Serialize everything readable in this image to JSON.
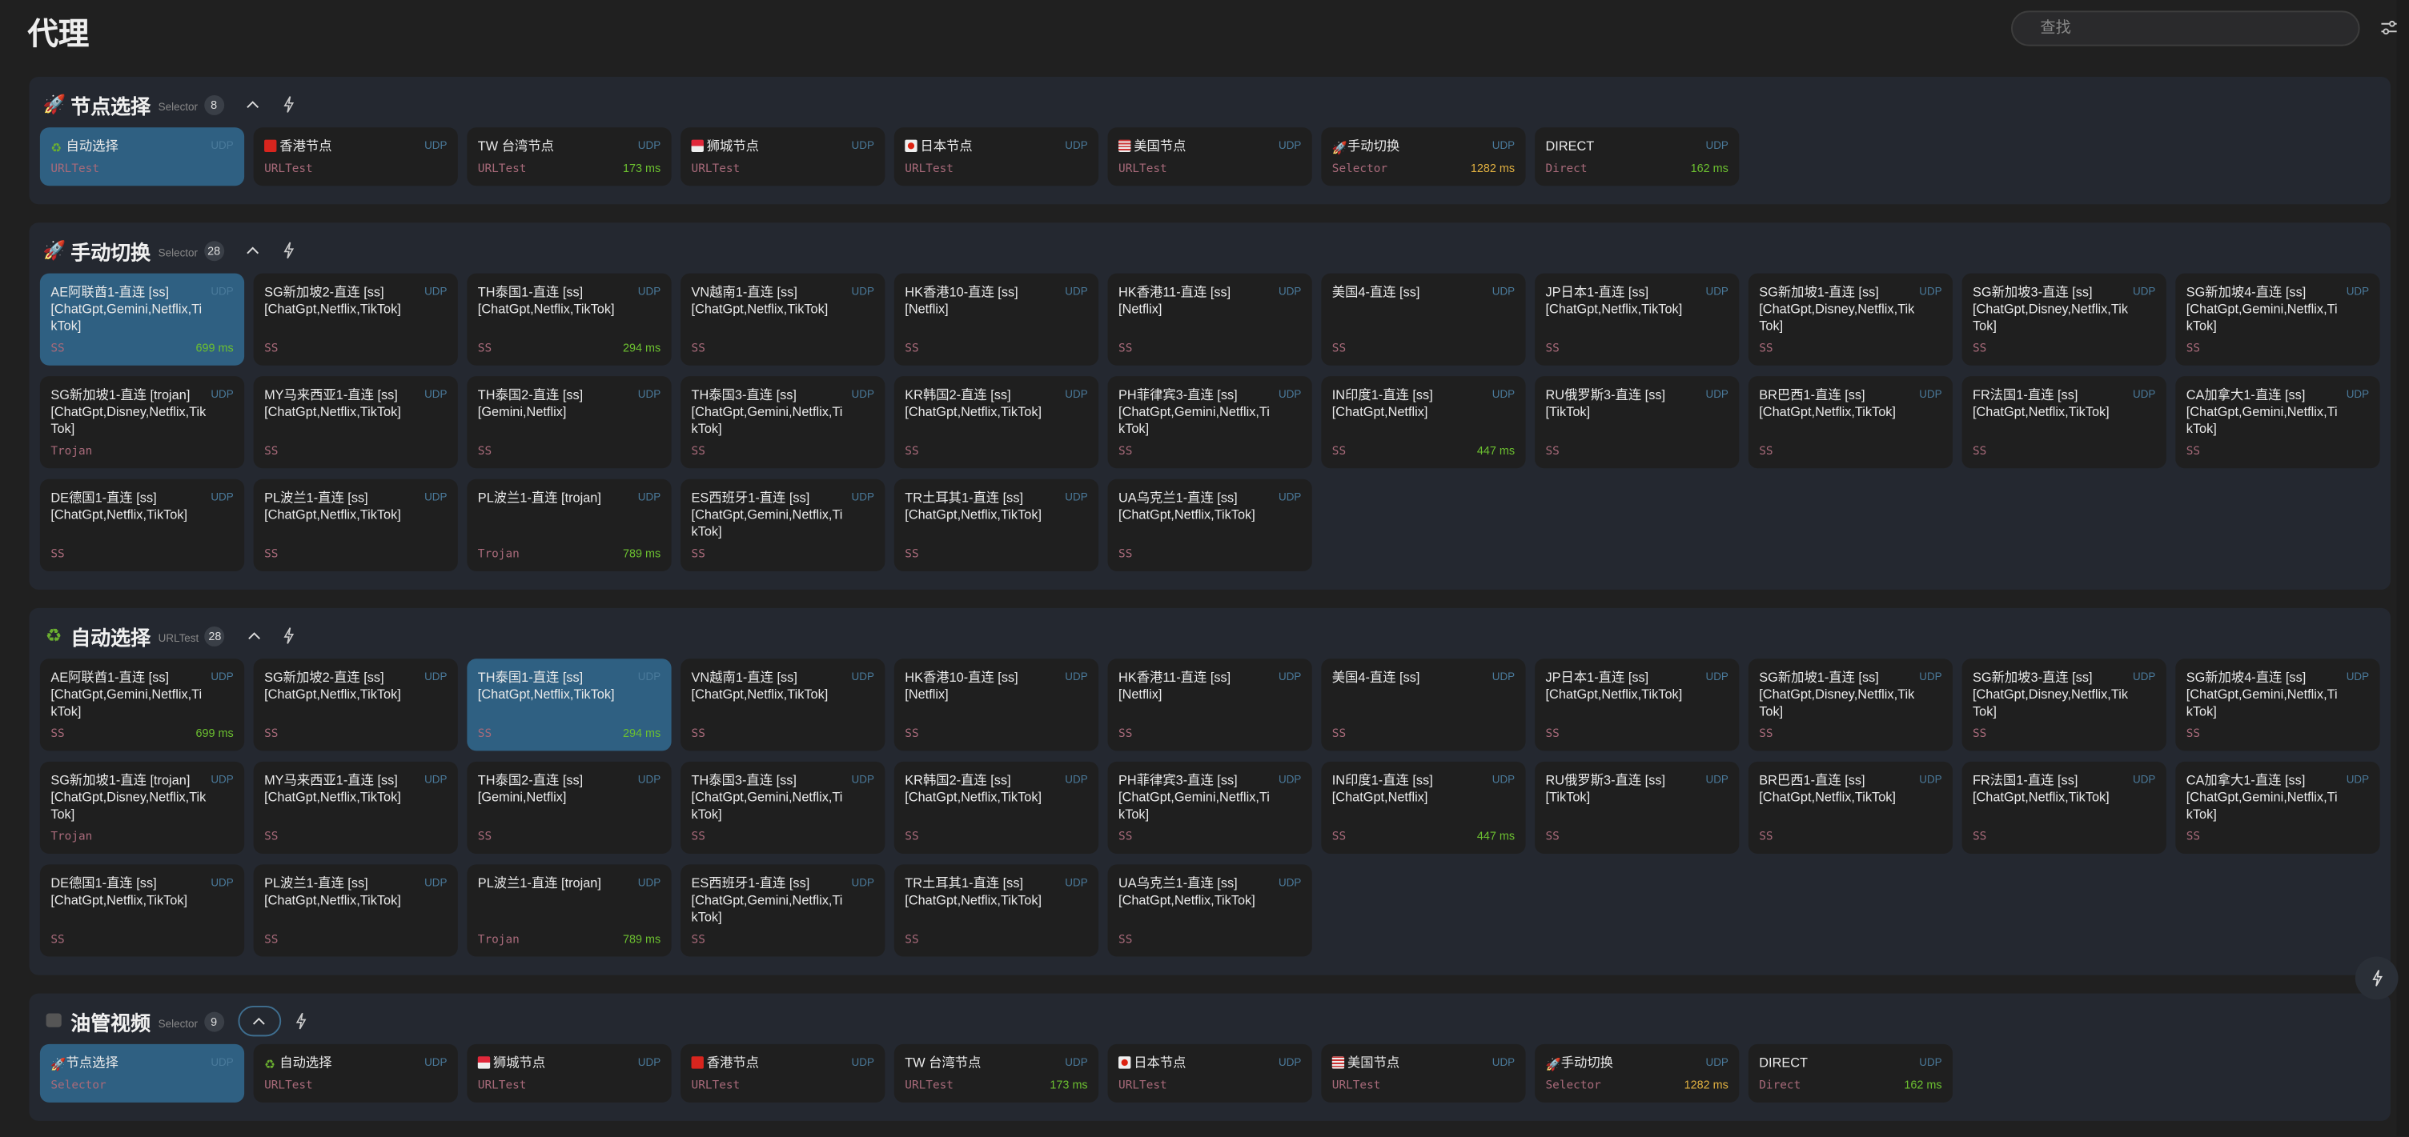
{
  "header": {
    "title": "代理",
    "search_placeholder": "查找",
    "settings_icon": "sliders-icon"
  },
  "colors": {
    "selected": "#2f6082",
    "udp": "#4a7a9b",
    "type": "#a86a7a",
    "delay_fast": "#6cc030",
    "delay_slow": "#e0b040",
    "panel": "#242830",
    "card": "#1f1f1f"
  },
  "groups": [
    {
      "name": "节点选择",
      "icon": "rocket-icon",
      "type": "Selector",
      "count": "8",
      "layout": "single",
      "selected": 0,
      "nodes": [
        {
          "flag": "recycle-icon",
          "name": "自动选择",
          "udp": "UDP",
          "type": "URLTest",
          "delay": ""
        },
        {
          "flag": "flag-hk",
          "name": "香港节点",
          "udp": "UDP",
          "type": "URLTest",
          "delay": ""
        },
        {
          "flag": "",
          "name": "TW 台湾节点",
          "udp": "UDP",
          "type": "URLTest",
          "delay": "173 ms"
        },
        {
          "flag": "flag-sg",
          "name": "狮城节点",
          "udp": "UDP",
          "type": "URLTest",
          "delay": ""
        },
        {
          "flag": "flag-jp",
          "name": "日本节点",
          "udp": "UDP",
          "type": "URLTest",
          "delay": ""
        },
        {
          "flag": "flag-us",
          "name": "美国节点",
          "udp": "UDP",
          "type": "URLTest",
          "delay": ""
        },
        {
          "flag": "rocket-icon",
          "name": "手动切换",
          "udp": "UDP",
          "type": "Selector",
          "delay": "1282 ms"
        },
        {
          "flag": "",
          "name": "DIRECT",
          "udp": "UDP",
          "type": "Direct",
          "delay": "162 ms"
        }
      ]
    },
    {
      "name": "手动切换",
      "icon": "rocket-icon",
      "type": "Selector",
      "count": "28",
      "layout": "double",
      "selected": 0,
      "nodes_ref": "manual"
    },
    {
      "name": "自动选择",
      "icon": "recycle-icon",
      "type": "URLTest",
      "count": "28",
      "layout": "double",
      "selected": 2,
      "nodes_ref": "manual"
    },
    {
      "name": "油管视频",
      "icon": "youtube-icon",
      "type": "Selector",
      "count": "9",
      "layout": "single",
      "selected": 0,
      "nodes": [
        {
          "flag": "rocket-icon",
          "name": "节点选择",
          "udp": "UDP",
          "type": "Selector",
          "delay": ""
        },
        {
          "flag": "recycle-icon",
          "name": "自动选择",
          "udp": "UDP",
          "type": "URLTest",
          "delay": ""
        },
        {
          "flag": "flag-sg",
          "name": "狮城节点",
          "udp": "UDP",
          "type": "URLTest",
          "delay": ""
        },
        {
          "flag": "flag-hk",
          "name": "香港节点",
          "udp": "UDP",
          "type": "URLTest",
          "delay": ""
        },
        {
          "flag": "",
          "name": "TW 台湾节点",
          "udp": "UDP",
          "type": "URLTest",
          "delay": "173 ms"
        },
        {
          "flag": "flag-jp",
          "name": "日本节点",
          "udp": "UDP",
          "type": "URLTest",
          "delay": ""
        },
        {
          "flag": "flag-us",
          "name": "美国节点",
          "udp": "UDP",
          "type": "URLTest",
          "delay": ""
        },
        {
          "flag": "rocket-icon",
          "name": "手动切换",
          "udp": "UDP",
          "type": "Selector",
          "delay": "1282 ms"
        },
        {
          "flag": "",
          "name": "DIRECT",
          "udp": "UDP",
          "type": "Direct",
          "delay": "162 ms"
        }
      ]
    }
  ],
  "manual": [
    {
      "name": "AE阿联酋1-直连 [ss]",
      "tags": "[ChatGpt,Gemini,Netflix,TikTok]",
      "udp": "UDP",
      "type": "SS",
      "delay": "699 ms"
    },
    {
      "name": "SG新加坡2-直连 [ss]",
      "tags": "[ChatGpt,Netflix,TikTok]",
      "udp": "UDP",
      "type": "SS",
      "delay": ""
    },
    {
      "name": "TH泰国1-直连 [ss]",
      "tags": "[ChatGpt,Netflix,TikTok]",
      "udp": "UDP",
      "type": "SS",
      "delay": "294 ms"
    },
    {
      "name": "VN越南1-直连 [ss]",
      "tags": "[ChatGpt,Netflix,TikTok]",
      "udp": "UDP",
      "type": "SS",
      "delay": ""
    },
    {
      "name": "HK香港10-直连 [ss]",
      "tags": "[Netflix]",
      "udp": "UDP",
      "type": "SS",
      "delay": ""
    },
    {
      "name": "HK香港11-直连 [ss]",
      "tags": "[Netflix]",
      "udp": "UDP",
      "type": "SS",
      "delay": ""
    },
    {
      "name": "美国4-直连 [ss]",
      "tags": "",
      "udp": "UDP",
      "type": "SS",
      "delay": ""
    },
    {
      "name": "JP日本1-直连 [ss]",
      "tags": "[ChatGpt,Netflix,TikTok]",
      "udp": "UDP",
      "type": "SS",
      "delay": ""
    },
    {
      "name": "SG新加坡1-直连 [ss]",
      "tags": "[ChatGpt,Disney,Netflix,TikTok]",
      "udp": "UDP",
      "type": "SS",
      "delay": ""
    },
    {
      "name": "SG新加坡3-直连 [ss]",
      "tags": "[ChatGpt,Disney,Netflix,TikTok]",
      "udp": "UDP",
      "type": "SS",
      "delay": ""
    },
    {
      "name": "SG新加坡4-直连 [ss]",
      "tags": "[ChatGpt,Gemini,Netflix,TikTok]",
      "udp": "UDP",
      "type": "SS",
      "delay": ""
    },
    {
      "name": "SG新加坡1-直连 [trojan]",
      "tags": "[ChatGpt,Disney,Netflix,TikTok]",
      "udp": "UDP",
      "type": "Trojan",
      "delay": ""
    },
    {
      "name": "MY马来西亚1-直连 [ss]",
      "tags": "[ChatGpt,Netflix,TikTok]",
      "udp": "UDP",
      "type": "SS",
      "delay": ""
    },
    {
      "name": "TH泰国2-直连 [ss]",
      "tags": "[Gemini,Netflix]",
      "udp": "UDP",
      "type": "SS",
      "delay": ""
    },
    {
      "name": "TH泰国3-直连 [ss]",
      "tags": "[ChatGpt,Gemini,Netflix,TikTok]",
      "udp": "UDP",
      "type": "SS",
      "delay": ""
    },
    {
      "name": "KR韩国2-直连 [ss]",
      "tags": "[ChatGpt,Netflix,TikTok]",
      "udp": "UDP",
      "type": "SS",
      "delay": ""
    },
    {
      "name": "PH菲律宾3-直连 [ss]",
      "tags": "[ChatGpt,Gemini,Netflix,TikTok]",
      "udp": "UDP",
      "type": "SS",
      "delay": ""
    },
    {
      "name": "IN印度1-直连 [ss]",
      "tags": "[ChatGpt,Netflix]",
      "udp": "UDP",
      "type": "SS",
      "delay": "447 ms"
    },
    {
      "name": "RU俄罗斯3-直连 [ss]",
      "tags": "[TikTok]",
      "udp": "UDP",
      "type": "SS",
      "delay": ""
    },
    {
      "name": "BR巴西1-直连 [ss]",
      "tags": "[ChatGpt,Netflix,TikTok]",
      "udp": "UDP",
      "type": "SS",
      "delay": ""
    },
    {
      "name": "FR法国1-直连 [ss]",
      "tags": "[ChatGpt,Netflix,TikTok]",
      "udp": "UDP",
      "type": "SS",
      "delay": ""
    },
    {
      "name": "CA加拿大1-直连 [ss]",
      "tags": "[ChatGpt,Gemini,Netflix,TikTok]",
      "udp": "UDP",
      "type": "SS",
      "delay": ""
    },
    {
      "name": "DE德国1-直连 [ss]",
      "tags": "[ChatGpt,Netflix,TikTok]",
      "udp": "UDP",
      "type": "SS",
      "delay": ""
    },
    {
      "name": "PL波兰1-直连 [ss]",
      "tags": "[ChatGpt,Netflix,TikTok]",
      "udp": "UDP",
      "type": "SS",
      "delay": ""
    },
    {
      "name": "PL波兰1-直连 [trojan]",
      "tags": "",
      "udp": "UDP",
      "type": "Trojan",
      "delay": "789 ms"
    },
    {
      "name": "ES西班牙1-直连 [ss]",
      "tags": "[ChatGpt,Gemini,Netflix,TikTok]",
      "udp": "UDP",
      "type": "SS",
      "delay": ""
    },
    {
      "name": "TR土耳其1-直连 [ss]",
      "tags": "[ChatGpt,Netflix,TikTok]",
      "udp": "UDP",
      "type": "SS",
      "delay": ""
    },
    {
      "name": "UA乌克兰1-直连 [ss]",
      "tags": "[ChatGpt,Netflix,TikTok]",
      "udp": "UDP",
      "type": "SS",
      "delay": ""
    }
  ]
}
